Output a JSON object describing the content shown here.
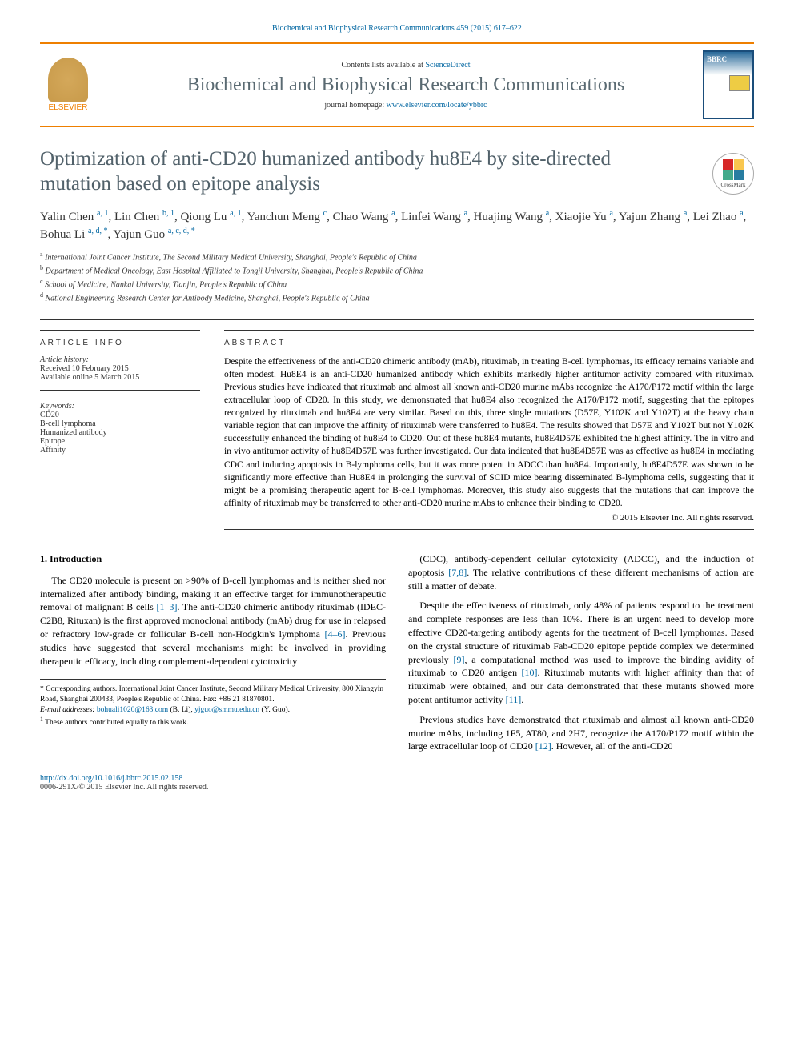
{
  "header": {
    "citation": "Biochemical and Biophysical Research Communications 459 (2015) 617–622",
    "contents_prefix": "Contents lists available at ",
    "contents_link": "ScienceDirect",
    "journal_title": "Biochemical and Biophysical Research Communications",
    "homepage_prefix": "journal homepage: ",
    "homepage_url": "www.elsevier.com/locate/ybbrc",
    "publisher": "ELSEVIER",
    "cover_label": "BBRC"
  },
  "crossmark": {
    "label": "CrossMark"
  },
  "article": {
    "title": "Optimization of anti-CD20 humanized antibody hu8E4 by site-directed mutation based on epitope analysis",
    "authors_html": "Yalin Chen <sup>a, 1</sup>, Lin Chen <sup>b, 1</sup>, Qiong Lu <sup>a, 1</sup>, Yanchun Meng <sup>c</sup>, Chao Wang <sup>a</sup>, Linfei Wang <sup>a</sup>, Huajing Wang <sup>a</sup>, Xiaojie Yu <sup>a</sup>, Yajun Zhang <sup>a</sup>, Lei Zhao <sup>a</sup>, Bohua Li <sup>a, d, *</sup>, Yajun Guo <sup>a, c, d, *</sup>",
    "affiliations": [
      {
        "sup": "a",
        "text": "International Joint Cancer Institute, The Second Military Medical University, Shanghai, People's Republic of China"
      },
      {
        "sup": "b",
        "text": "Department of Medical Oncology, East Hospital Affiliated to Tongji University, Shanghai, People's Republic of China"
      },
      {
        "sup": "c",
        "text": "School of Medicine, Nankai University, Tianjin, People's Republic of China"
      },
      {
        "sup": "d",
        "text": "National Engineering Research Center for Antibody Medicine, Shanghai, People's Republic of China"
      }
    ]
  },
  "info": {
    "heading": "ARTICLE INFO",
    "history_label": "Article history:",
    "received": "Received 10 February 2015",
    "online": "Available online 5 March 2015",
    "keywords_label": "Keywords:",
    "keywords": [
      "CD20",
      "B-cell lymphoma",
      "Humanized antibody",
      "Epitope",
      "Affinity"
    ]
  },
  "abstract": {
    "heading": "ABSTRACT",
    "text": "Despite the effectiveness of the anti-CD20 chimeric antibody (mAb), rituximab, in treating B-cell lymphomas, its efficacy remains variable and often modest. Hu8E4 is an anti-CD20 humanized antibody which exhibits markedly higher antitumor activity compared with rituximab. Previous studies have indicated that rituximab and almost all known anti-CD20 murine mAbs recognize the A170/P172 motif within the large extracellular loop of CD20. In this study, we demonstrated that hu8E4 also recognized the A170/P172 motif, suggesting that the epitopes recognized by rituximab and hu8E4 are very similar. Based on this, three single mutations (D57E, Y102K and Y102T) at the heavy chain variable region that can improve the affinity of rituximab were transferred to hu8E4. The results showed that D57E and Y102T but not Y102K successfully enhanced the binding of hu8E4 to CD20. Out of these hu8E4 mutants, hu8E4D57E exhibited the highest affinity. The in vitro and in vivo antitumor activity of hu8E4D57E was further investigated. Our data indicated that hu8E4D57E was as effective as hu8E4 in mediating CDC and inducing apoptosis in B-lymphoma cells, but it was more potent in ADCC than hu8E4. Importantly, hu8E4D57E was shown to be significantly more effective than Hu8E4 in prolonging the survival of SCID mice bearing disseminated B-lymphoma cells, suggesting that it might be a promising therapeutic agent for B-cell lymphomas. Moreover, this study also suggests that the mutations that can improve the affinity of rituximab may be transferred to other anti-CD20 murine mAbs to enhance their binding to CD20.",
    "copyright": "© 2015 Elsevier Inc. All rights reserved."
  },
  "body": {
    "section_heading": "1. Introduction",
    "col1": [
      {
        "html": "The CD20 molecule is present on >90% of B-cell lymphomas and is neither shed nor internalized after antibody binding, making it an effective target for immunotherapeutic removal of malignant B cells <a class='ref' href='#'>[1–3]</a>. The anti-CD20 chimeric antibody rituximab (IDEC-C2B8, Rituxan) is the first approved monoclonal antibody (mAb) drug for use in relapsed or refractory low-grade or follicular B-cell non-Hodgkin's lymphoma <a class='ref' href='#'>[4–6]</a>. Previous studies have suggested that several mechanisms might be involved in providing therapeutic efficacy, including complement-dependent cytotoxicity"
      }
    ],
    "col2": [
      {
        "html": "(CDC), antibody-dependent cellular cytotoxicity (ADCC), and the induction of apoptosis <a class='ref' href='#'>[7,8]</a>. The relative contributions of these different mechanisms of action are still a matter of debate."
      },
      {
        "html": "Despite the effectiveness of rituximab, only 48% of patients respond to the treatment and complete responses are less than 10%. There is an urgent need to develop more effective CD20-targeting antibody agents for the treatment of B-cell lymphomas. Based on the crystal structure of rituximab Fab-CD20 epitope peptide complex we determined previously <a class='ref' href='#'>[9]</a>, a computational method was used to improve the binding avidity of rituximab to CD20 antigen <a class='ref' href='#'>[10]</a>. Rituximab mutants with higher affinity than that of rituximab were obtained, and our data demonstrated that these mutants showed more potent antitumor activity <a class='ref' href='#'>[11]</a>."
      },
      {
        "html": "Previous studies have demonstrated that rituximab and almost all known anti-CD20 murine mAbs, including 1F5, AT80, and 2H7, recognize the A170/P172 motif within the large extracellular loop of CD20 <a class='ref' href='#'>[12]</a>. However, all of the anti-CD20"
      }
    ]
  },
  "footnotes": {
    "corresponding": "* Corresponding authors. International Joint Cancer Institute, Second Military Medical University, 800 Xiangyin Road, Shanghai 200433, People's Republic of China. Fax: +86 21 81870801.",
    "emails_label": "E-mail addresses:",
    "email1": "bohuali1020@163.com",
    "email1_name": "(B. Li),",
    "email2": "yjguo@smmu.edu.cn",
    "email2_name": "(Y. Guo).",
    "equal": "These authors contributed equally to this work.",
    "equal_sup": "1"
  },
  "footer": {
    "doi": "http://dx.doi.org/10.1016/j.bbrc.2015.02.158",
    "issn_copy": "0006-291X/© 2015 Elsevier Inc. All rights reserved."
  },
  "colors": {
    "accent_orange": "#ee7f00",
    "link_blue": "#0066a1",
    "title_grey": "#51616a"
  }
}
